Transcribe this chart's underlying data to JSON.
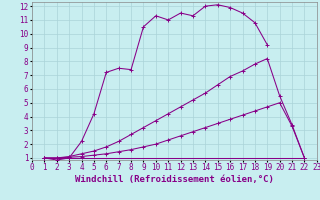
{
  "xlabel": "Windchill (Refroidissement éolien,°C)",
  "xlim": [
    0,
    23
  ],
  "ylim": [
    1,
    12
  ],
  "xticks": [
    0,
    1,
    2,
    3,
    4,
    5,
    6,
    7,
    8,
    9,
    10,
    11,
    12,
    13,
    14,
    15,
    16,
    17,
    18,
    19,
    20,
    21,
    22,
    23
  ],
  "yticks": [
    1,
    2,
    3,
    4,
    5,
    6,
    7,
    8,
    9,
    10,
    11,
    12
  ],
  "bg_color": "#c8eef0",
  "grid_color": "#aad4d8",
  "line_color": "#880088",
  "line1_x": [
    1,
    2,
    3,
    4,
    5,
    6,
    7,
    8,
    9,
    10,
    11,
    12,
    13,
    14,
    15,
    16,
    17,
    18,
    19
  ],
  "line1_y": [
    1.0,
    0.85,
    1.0,
    2.2,
    4.2,
    7.2,
    7.5,
    7.4,
    10.5,
    11.3,
    11.0,
    11.5,
    11.3,
    12.0,
    12.1,
    11.9,
    11.5,
    10.8,
    9.2
  ],
  "line2_x": [
    1,
    2,
    3,
    4,
    5,
    6,
    7,
    8,
    9,
    10,
    11,
    12,
    13,
    14,
    15,
    16,
    17,
    18,
    19,
    20,
    21,
    22
  ],
  "line2_y": [
    1.0,
    1.0,
    1.1,
    1.3,
    1.5,
    1.8,
    2.2,
    2.7,
    3.2,
    3.7,
    4.2,
    4.7,
    5.2,
    5.7,
    6.3,
    6.9,
    7.3,
    7.8,
    8.2,
    5.5,
    3.4,
    1.0
  ],
  "line3_x": [
    1,
    2,
    3,
    4,
    5,
    6,
    7,
    8,
    9,
    10,
    11,
    12,
    13,
    14,
    15,
    16,
    17,
    18,
    19,
    20,
    21,
    22
  ],
  "line3_y": [
    1.0,
    1.0,
    1.05,
    1.1,
    1.2,
    1.3,
    1.45,
    1.6,
    1.8,
    2.0,
    2.3,
    2.6,
    2.9,
    3.2,
    3.5,
    3.8,
    4.1,
    4.4,
    4.7,
    5.0,
    3.3,
    1.0
  ],
  "line4_x": [
    1,
    22
  ],
  "line4_y": [
    1.0,
    1.0
  ],
  "tick_fontsize": 5.5,
  "xlabel_fontsize": 6.5
}
